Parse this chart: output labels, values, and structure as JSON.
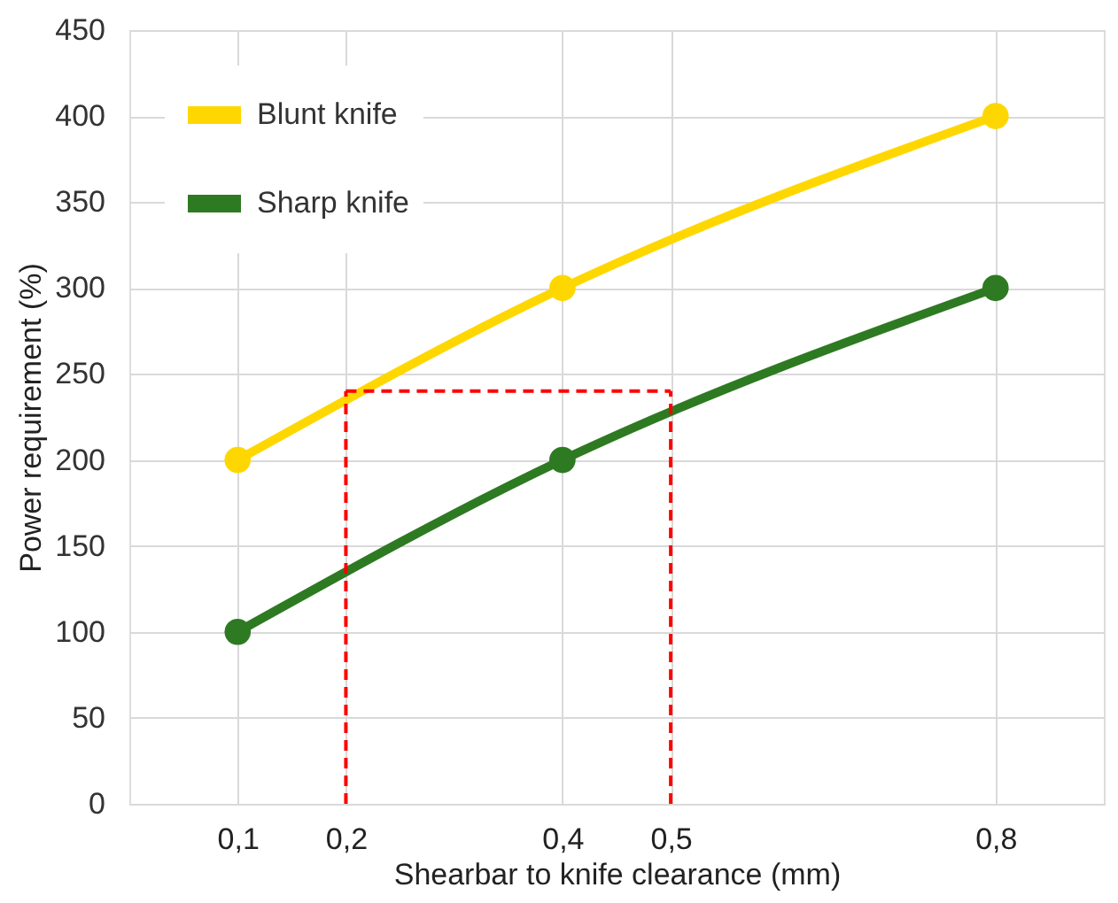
{
  "chart_data": {
    "type": "line",
    "xlabel": "Shearbar to knife clearance (mm)",
    "ylabel": "Power requirement (%)",
    "x": [
      0.1,
      0.4,
      0.8
    ],
    "series": [
      {
        "name": "Blunt knife",
        "color": "#ffd700",
        "values": [
          200,
          300,
          400
        ]
      },
      {
        "name": "Sharp knife",
        "color": "#2e7a22",
        "values": [
          100,
          200,
          300
        ]
      }
    ],
    "xlim": [
      0,
      0.9
    ],
    "xticks": [
      {
        "value": 0.1,
        "label": "0,1"
      },
      {
        "value": 0.2,
        "label": "0,2"
      },
      {
        "value": 0.4,
        "label": "0,4"
      },
      {
        "value": 0.5,
        "label": "0,5"
      },
      {
        "value": 0.8,
        "label": "0,8"
      }
    ],
    "ylim": [
      0,
      450
    ],
    "yticks": [
      0,
      50,
      100,
      150,
      200,
      250,
      300,
      350,
      400,
      450
    ],
    "ref_lines": [
      {
        "axis": "x",
        "value": 0.2,
        "color": "#ff0000",
        "line_style": "dashed"
      },
      {
        "axis": "x",
        "value": 0.5,
        "color": "#ff0000",
        "line_style": "dashed"
      },
      {
        "axis": "y",
        "value": 240,
        "color": "#ff0000",
        "line_style": "dashed"
      }
    ],
    "grid": true,
    "legend": "top left",
    "marker": "circle",
    "line_style": "solid"
  }
}
